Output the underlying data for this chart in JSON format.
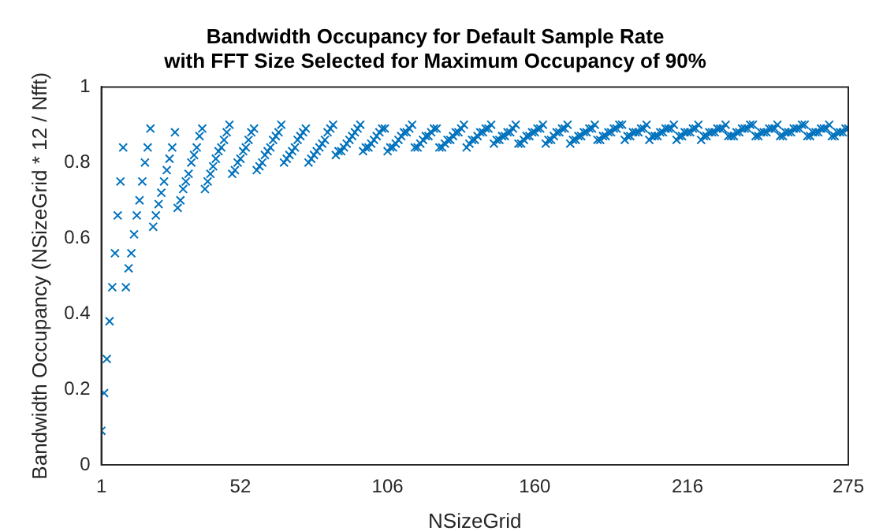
{
  "chart_data": {
    "type": "scatter",
    "title": "Bandwidth Occupancy for Default Sample Rate\nwith FFT Size Selected for Maximum Occupancy of 90%",
    "xlabel": "NSizeGrid",
    "ylabel": "Bandwidth Occupancy (NSizeGrid * 12 / Nfft)",
    "x": [
      1,
      2,
      3,
      4,
      5,
      6,
      7,
      8,
      9,
      10,
      11,
      12,
      13,
      14,
      15,
      16,
      17,
      18,
      19,
      20,
      21,
      22,
      23,
      24,
      25,
      26,
      27,
      28,
      29,
      30,
      31,
      32,
      33,
      34,
      35,
      36,
      37,
      38,
      39,
      40,
      41,
      42,
      43,
      44,
      45,
      46,
      47,
      48,
      49,
      50,
      51,
      52,
      53,
      54,
      55,
      56,
      57,
      58,
      59,
      60,
      61,
      62,
      63,
      64,
      65,
      66,
      67,
      68,
      69,
      70,
      71,
      72,
      73,
      74,
      75,
      76,
      77,
      78,
      79,
      80,
      81,
      82,
      83,
      84,
      85,
      86,
      87,
      88,
      89,
      90,
      91,
      92,
      93,
      94,
      95,
      96,
      97,
      98,
      99,
      100,
      101,
      102,
      103,
      104,
      105,
      106,
      107,
      108,
      109,
      110,
      111,
      112,
      113,
      114,
      115,
      116,
      117,
      118,
      119,
      120,
      121,
      122,
      123,
      124,
      125,
      126,
      127,
      128,
      129,
      130,
      131,
      132,
      133,
      134,
      135,
      136,
      137,
      138,
      139,
      140,
      141,
      142,
      143,
      144,
      145,
      146,
      147,
      148,
      149,
      150,
      151,
      152,
      153,
      154,
      155,
      156,
      157,
      158,
      159,
      160,
      161,
      162,
      163,
      164,
      165,
      166,
      167,
      168,
      169,
      170,
      171,
      172,
      173,
      174,
      175,
      176,
      177,
      178,
      179,
      180,
      181,
      182,
      183,
      184,
      185,
      186,
      187,
      188,
      189,
      190,
      191,
      192,
      193,
      194,
      195,
      196,
      197,
      198,
      199,
      200,
      201,
      202,
      203,
      204,
      205,
      206,
      207,
      208,
      209,
      210,
      211,
      212,
      213,
      214,
      215,
      216,
      217,
      218,
      219,
      220,
      221,
      222,
      223,
      224,
      225,
      226,
      227,
      228,
      229,
      230,
      231,
      232,
      233,
      234,
      235,
      236,
      237,
      238,
      239,
      240,
      241,
      242,
      243,
      244,
      245,
      246,
      247,
      248,
      249,
      250,
      251,
      252,
      253,
      254,
      255,
      256,
      257,
      258,
      259,
      260,
      261,
      262,
      263,
      264,
      265,
      266,
      267,
      268,
      269,
      270,
      271,
      272,
      273,
      274,
      275
    ],
    "values": [
      0.09,
      0.19,
      0.28,
      0.38,
      0.47,
      0.56,
      0.66,
      0.75,
      0.84,
      0.47,
      0.52,
      0.56,
      0.61,
      0.66,
      0.7,
      0.75,
      0.8,
      0.84,
      0.89,
      0.63,
      0.66,
      0.69,
      0.72,
      0.75,
      0.78,
      0.81,
      0.84,
      0.88,
      0.68,
      0.7,
      0.73,
      0.75,
      0.77,
      0.8,
      0.82,
      0.84,
      0.87,
      0.89,
      0.73,
      0.75,
      0.77,
      0.79,
      0.81,
      0.83,
      0.84,
      0.86,
      0.88,
      0.9,
      0.77,
      0.78,
      0.8,
      0.81,
      0.83,
      0.84,
      0.86,
      0.88,
      0.89,
      0.78,
      0.79,
      0.8,
      0.82,
      0.83,
      0.84,
      0.86,
      0.87,
      0.88,
      0.9,
      0.8,
      0.81,
      0.82,
      0.83,
      0.84,
      0.86,
      0.87,
      0.88,
      0.89,
      0.8,
      0.81,
      0.82,
      0.83,
      0.84,
      0.85,
      0.86,
      0.88,
      0.89,
      0.9,
      0.82,
      0.83,
      0.83,
      0.84,
      0.85,
      0.86,
      0.87,
      0.88,
      0.89,
      0.9,
      0.83,
      0.84,
      0.84,
      0.85,
      0.86,
      0.87,
      0.88,
      0.89,
      0.89,
      0.83,
      0.84,
      0.84,
      0.85,
      0.86,
      0.87,
      0.88,
      0.88,
      0.89,
      0.9,
      0.84,
      0.84,
      0.85,
      0.86,
      0.87,
      0.87,
      0.88,
      0.89,
      0.89,
      0.84,
      0.84,
      0.85,
      0.86,
      0.86,
      0.87,
      0.88,
      0.88,
      0.89,
      0.9,
      0.84,
      0.85,
      0.86,
      0.86,
      0.87,
      0.88,
      0.88,
      0.89,
      0.89,
      0.9,
      0.85,
      0.86,
      0.86,
      0.87,
      0.87,
      0.88,
      0.88,
      0.89,
      0.9,
      0.85,
      0.85,
      0.86,
      0.87,
      0.87,
      0.88,
      0.88,
      0.89,
      0.89,
      0.9,
      0.85,
      0.86,
      0.86,
      0.87,
      0.88,
      0.88,
      0.89,
      0.89,
      0.9,
      0.85,
      0.86,
      0.86,
      0.87,
      0.87,
      0.88,
      0.88,
      0.89,
      0.89,
      0.9,
      0.86,
      0.86,
      0.87,
      0.87,
      0.88,
      0.88,
      0.89,
      0.89,
      0.9,
      0.9,
      0.86,
      0.87,
      0.87,
      0.88,
      0.88,
      0.88,
      0.89,
      0.89,
      0.9,
      0.86,
      0.87,
      0.87,
      0.87,
      0.88,
      0.88,
      0.89,
      0.89,
      0.89,
      0.9,
      0.86,
      0.87,
      0.87,
      0.88,
      0.88,
      0.88,
      0.89,
      0.89,
      0.9,
      0.86,
      0.87,
      0.87,
      0.88,
      0.88,
      0.88,
      0.89,
      0.89,
      0.89,
      0.9,
      0.87,
      0.87,
      0.87,
      0.88,
      0.88,
      0.89,
      0.89,
      0.89,
      0.9,
      0.9,
      0.87,
      0.87,
      0.88,
      0.88,
      0.88,
      0.89,
      0.89,
      0.89,
      0.9,
      0.87,
      0.87,
      0.88,
      0.88,
      0.88,
      0.89,
      0.89,
      0.89,
      0.9,
      0.9,
      0.87,
      0.87,
      0.88,
      0.88,
      0.88,
      0.89,
      0.89,
      0.89,
      0.9,
      0.87,
      0.87,
      0.88,
      0.88,
      0.88,
      0.89,
      0.89
    ],
    "color": "#0072bd",
    "marker": "cross",
    "xlim": [
      1,
      275
    ],
    "xticks": [
      1,
      52,
      106,
      160,
      216,
      275
    ],
    "ylim": [
      0,
      1
    ],
    "yticks": [
      0,
      0.2,
      0.4,
      0.6,
      0.8,
      1
    ]
  }
}
